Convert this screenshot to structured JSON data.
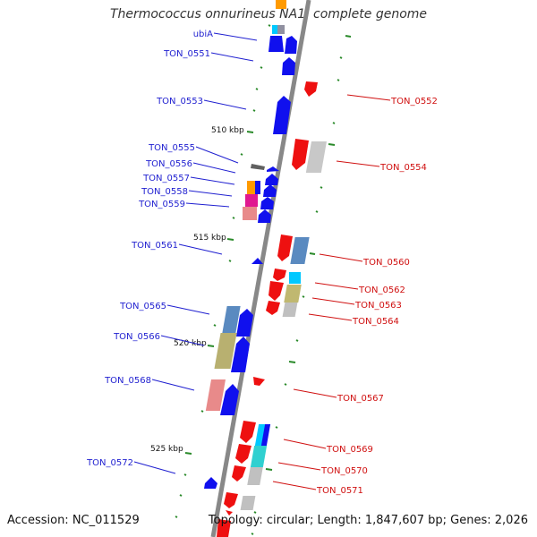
{
  "title": "Thermococcus onnurineus NA1, complete genome",
  "footer": {
    "accession": "Accession: NC_011529",
    "summary": "Topology: circular; Length: 1,847,607 bp; Genes: 2,026"
  },
  "colors": {
    "left_label": "#1f1fd0",
    "right_label": "#d01010",
    "backbone": "#888888",
    "tick": "#2a8a2a"
  },
  "ticks": [
    {
      "label": "510 kbp",
      "pos": 510
    },
    {
      "label": "515 kbp",
      "pos": 515
    },
    {
      "label": "520 kbp",
      "pos": 520
    },
    {
      "label": "525 kbp",
      "pos": 525
    }
  ],
  "left_genes": [
    {
      "label": "ubiA"
    },
    {
      "label": "TON_0551"
    },
    {
      "label": "TON_0553"
    },
    {
      "label": "TON_0555"
    },
    {
      "label": "TON_0556"
    },
    {
      "label": "TON_0557"
    },
    {
      "label": "TON_0558"
    },
    {
      "label": "TON_0559"
    },
    {
      "label": "TON_0561"
    },
    {
      "label": "TON_0565"
    },
    {
      "label": "TON_0566"
    },
    {
      "label": "TON_0568"
    },
    {
      "label": "TON_0572"
    }
  ],
  "right_genes": [
    {
      "label": "TON_0552"
    },
    {
      "label": "TON_0554"
    },
    {
      "label": "TON_0560"
    },
    {
      "label": "TON_0562"
    },
    {
      "label": "TON_0563"
    },
    {
      "label": "TON_0564"
    },
    {
      "label": "TON_0567"
    },
    {
      "label": "TON_0569"
    },
    {
      "label": "TON_0570"
    },
    {
      "label": "TON_0571"
    }
  ]
}
